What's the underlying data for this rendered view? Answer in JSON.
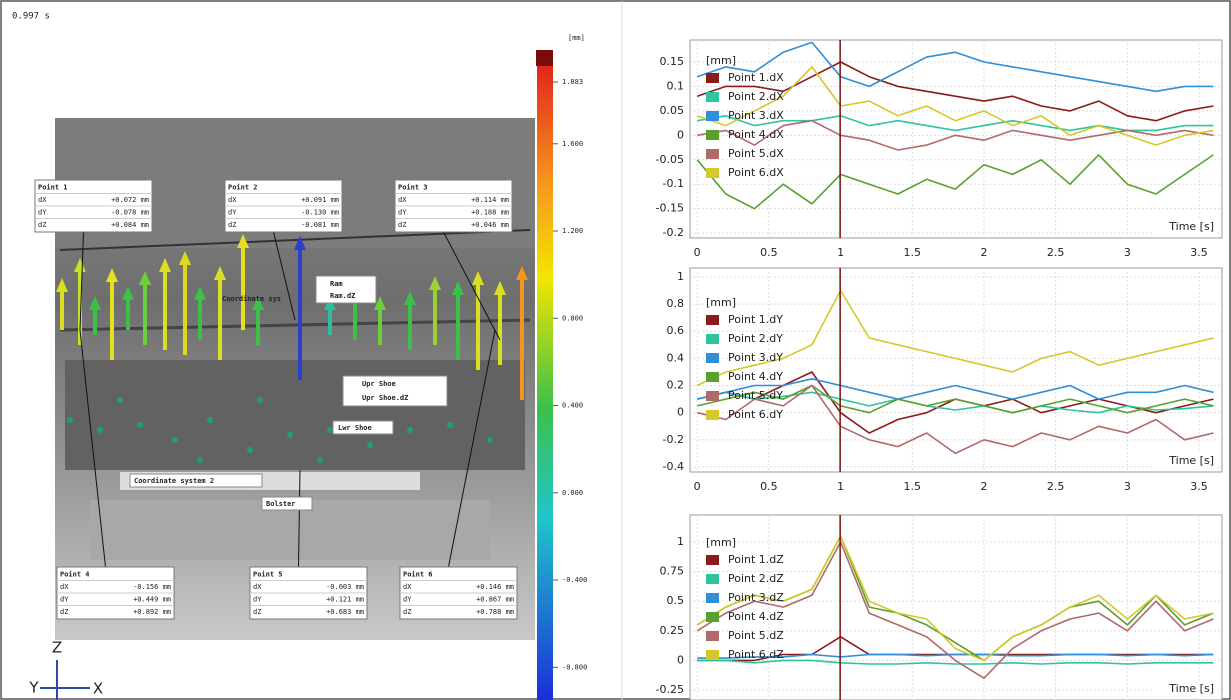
{
  "timestamp": "0.997 s",
  "colorbar": {
    "unit": "[mm]",
    "lim": [
      -0.95,
      2.03
    ],
    "ticks": [
      {
        "value": 1.883,
        "label": "1.883"
      },
      {
        "value": 1.6,
        "label": "1.600"
      },
      {
        "value": 1.2,
        "label": "1.200"
      },
      {
        "value": 0.8,
        "label": "0.800"
      },
      {
        "value": 0.4,
        "label": "0.400"
      },
      {
        "value": 0,
        "label": "0.000"
      },
      {
        "value": -0.4,
        "label": "-0.400"
      },
      {
        "value": -0.8,
        "label": "-0.800"
      }
    ]
  },
  "point_boxes": [
    {
      "title": "Point 1",
      "rows": [
        [
          "dX",
          "+0.072 mm"
        ],
        [
          "dY",
          "-0.078 mm"
        ],
        [
          "dZ",
          "+0.084 mm"
        ]
      ]
    },
    {
      "title": "Point 2",
      "rows": [
        [
          "dX",
          "+0.091 mm"
        ],
        [
          "dY",
          "-0.130 mm"
        ],
        [
          "dZ",
          "-0.081 mm"
        ]
      ]
    },
    {
      "title": "Point 3",
      "rows": [
        [
          "dX",
          "+0.114 mm"
        ],
        [
          "dY",
          "+0.188 mm"
        ],
        [
          "dZ",
          "+0.046 mm"
        ]
      ]
    },
    {
      "title": "Point 4",
      "rows": [
        [
          "dX",
          "-0.156 mm"
        ],
        [
          "dY",
          "+0.449 mm"
        ],
        [
          "dZ",
          "+0.892 mm"
        ]
      ]
    },
    {
      "title": "Point 5",
      "rows": [
        [
          "dX",
          "-0.003 mm"
        ],
        [
          "dY",
          "+0.121 mm"
        ],
        [
          "dZ",
          "+0.683 mm"
        ]
      ]
    },
    {
      "title": "Point 6",
      "rows": [
        [
          "dX",
          "+0.146 mm"
        ],
        [
          "dY",
          "+0.867 mm"
        ],
        [
          "dZ",
          "+0.788 mm"
        ]
      ]
    }
  ],
  "labels": [
    "Ram",
    "Ram.dZ",
    "Coordinate sys",
    "Upr Shoe",
    "Upr Shoe.dZ",
    "Lwr Shoe",
    "Coordinate system 2",
    "Bolster"
  ],
  "triad": {
    "z": "Z",
    "y": "Y",
    "x": "X"
  },
  "chart_data": [
    {
      "type": "line",
      "legend_title": "[mm]",
      "xlabel": "Time [s]",
      "legend": "upper left",
      "grid": true,
      "cursor": 0.997,
      "x": [
        0,
        0.2,
        0.4,
        0.6,
        0.8,
        1,
        1.2,
        1.4,
        1.6,
        1.8,
        2,
        2.2,
        2.4,
        2.6,
        2.8,
        3,
        3.2,
        3.4,
        3.6
      ],
      "xlim": [
        -0.05,
        3.66
      ],
      "xticks": [
        0,
        0.5,
        1,
        1.5,
        2,
        2.5,
        3,
        3.5
      ],
      "ylim": [
        -0.21,
        0.195
      ],
      "yticks": [
        0.15,
        0.1,
        0.05,
        0,
        -0.05,
        -0.1,
        -0.15,
        -0.2
      ],
      "series": [
        {
          "name": "Point 1.dX",
          "color": "#8b1a1a",
          "values": [
            0.08,
            0.1,
            0.1,
            0.09,
            0.12,
            0.15,
            0.12,
            0.1,
            0.09,
            0.08,
            0.07,
            0.08,
            0.06,
            0.05,
            0.07,
            0.04,
            0.03,
            0.05,
            0.06
          ]
        },
        {
          "name": "Point 2.dX",
          "color": "#2ec4a0",
          "values": [
            0.03,
            0.04,
            0.02,
            0.03,
            0.03,
            0.04,
            0.02,
            0.03,
            0.02,
            0.01,
            0.02,
            0.03,
            0.02,
            0.01,
            0.02,
            0.01,
            0.01,
            0.02,
            0.02
          ]
        },
        {
          "name": "Point 3.dX",
          "color": "#2f8fd8",
          "values": [
            0.12,
            0.14,
            0.13,
            0.17,
            0.19,
            0.12,
            0.1,
            0.13,
            0.16,
            0.17,
            0.15,
            0.14,
            0.13,
            0.12,
            0.11,
            0.1,
            0.09,
            0.1,
            0.1
          ]
        },
        {
          "name": "Point 4.dX",
          "color": "#5aa02c",
          "values": [
            -0.05,
            -0.12,
            -0.15,
            -0.1,
            -0.14,
            -0.08,
            -0.1,
            -0.12,
            -0.09,
            -0.11,
            -0.06,
            -0.08,
            -0.05,
            -0.1,
            -0.04,
            -0.1,
            -0.12,
            -0.08,
            -0.04
          ]
        },
        {
          "name": "Point 5.dX",
          "color": "#b06a6a",
          "values": [
            0,
            0.01,
            -0.02,
            0.02,
            0.03,
            0,
            -0.01,
            -0.03,
            -0.02,
            0,
            -0.01,
            0.01,
            0,
            -0.01,
            0,
            0.01,
            0,
            0.01,
            0
          ]
        },
        {
          "name": "Point 6.dX",
          "color": "#d4c82a",
          "values": [
            0.04,
            0.02,
            0.05,
            0.08,
            0.14,
            0.06,
            0.07,
            0.04,
            0.06,
            0.03,
            0.05,
            0.02,
            0.04,
            0,
            0.02,
            0,
            -0.02,
            0,
            0.01
          ]
        }
      ]
    },
    {
      "type": "line",
      "legend_title": "[mm]",
      "xlabel": "Time [s]",
      "legend": "upper left",
      "grid": true,
      "cursor": 0.997,
      "x": [
        0,
        0.2,
        0.4,
        0.6,
        0.8,
        1,
        1.2,
        1.4,
        1.6,
        1.8,
        2,
        2.2,
        2.4,
        2.6,
        2.8,
        3,
        3.2,
        3.4,
        3.6
      ],
      "xlim": [
        -0.05,
        3.66
      ],
      "xticks": [
        0,
        0.5,
        1,
        1.5,
        2,
        2.5,
        3,
        3.5
      ],
      "ylim": [
        -0.437,
        1.066
      ],
      "yticks": [
        1,
        0.8,
        0.6,
        0.4,
        0.2,
        0,
        -0.2,
        -0.4
      ],
      "series": [
        {
          "name": "Point 1.dY",
          "color": "#8b1a1a",
          "values": [
            0.1,
            0.15,
            0.1,
            0.2,
            0.3,
            0,
            -0.15,
            -0.05,
            0,
            0.1,
            0.05,
            0.1,
            0,
            0.05,
            0.1,
            0.05,
            0,
            0.05,
            0.1
          ]
        },
        {
          "name": "Point 2.dY",
          "color": "#2ec4a0",
          "values": [
            0.1,
            0.15,
            0.1,
            0.12,
            0.15,
            0.1,
            0.05,
            0.1,
            0.05,
            0.02,
            0.05,
            0,
            0.05,
            0.02,
            0,
            0.05,
            0.02,
            0.03,
            0.05
          ]
        },
        {
          "name": "Point 3.dY",
          "color": "#2f8fd8",
          "values": [
            0.1,
            0.15,
            0.2,
            0.2,
            0.25,
            0.2,
            0.15,
            0.1,
            0.15,
            0.2,
            0.15,
            0.1,
            0.15,
            0.2,
            0.1,
            0.15,
            0.15,
            0.2,
            0.15
          ]
        },
        {
          "name": "Point 4.dY",
          "color": "#5aa02c",
          "values": [
            0.05,
            0.1,
            0.15,
            0.1,
            0.2,
            0.05,
            0,
            0.1,
            0.05,
            0.1,
            0.05,
            0,
            0.05,
            0.1,
            0.05,
            0,
            0.05,
            0.1,
            0.05
          ]
        },
        {
          "name": "Point 5.dY",
          "color": "#b06a6a",
          "values": [
            0,
            -0.05,
            0.1,
            0.05,
            0.2,
            -0.1,
            -0.2,
            -0.25,
            -0.15,
            -0.3,
            -0.2,
            -0.25,
            -0.15,
            -0.2,
            -0.1,
            -0.15,
            -0.05,
            -0.2,
            -0.15
          ]
        },
        {
          "name": "Point 6.dY",
          "color": "#d4c82a",
          "values": [
            0.2,
            0.3,
            0.35,
            0.4,
            0.5,
            0.9,
            0.55,
            0.5,
            0.45,
            0.4,
            0.35,
            0.3,
            0.4,
            0.45,
            0.35,
            0.4,
            0.45,
            0.5,
            0.55
          ]
        }
      ]
    },
    {
      "type": "line",
      "legend_title": "[mm]",
      "xlabel": "Time [s]",
      "legend": "upper left",
      "grid": true,
      "cursor": 0.997,
      "x": [
        0,
        0.2,
        0.4,
        0.6,
        0.8,
        1,
        1.2,
        1.4,
        1.6,
        1.8,
        2,
        2.2,
        2.4,
        2.6,
        2.8,
        3,
        3.2,
        3.4,
        3.6
      ],
      "xlim": [
        -0.05,
        3.66
      ],
      "xticks": [
        0,
        0.5,
        1,
        1.5,
        2,
        2.5,
        3,
        3.5
      ],
      "ylim": [
        -0.334,
        1.228
      ],
      "yticks": [
        1,
        0.75,
        0.5,
        0.25,
        0,
        -0.25
      ],
      "series": [
        {
          "name": "Point 1.dZ",
          "color": "#8b1a1a",
          "values": [
            0,
            0,
            0,
            0.05,
            0.05,
            0.2,
            0.05,
            0.05,
            0.05,
            0.05,
            0.05,
            0.05,
            0.05,
            0.05,
            0.05,
            0.05,
            0.05,
            0.05,
            0.05
          ]
        },
        {
          "name": "Point 2.dZ",
          "color": "#2ec4a0",
          "values": [
            0,
            0,
            -0.02,
            0,
            0,
            -0.02,
            -0.03,
            -0.03,
            -0.02,
            -0.03,
            -0.03,
            -0.02,
            -0.03,
            -0.02,
            -0.02,
            -0.03,
            -0.02,
            -0.02,
            -0.02
          ]
        },
        {
          "name": "Point 3.dZ",
          "color": "#2f8fd8",
          "values": [
            0.02,
            0.02,
            0.03,
            0.03,
            0.05,
            0.03,
            0.05,
            0.05,
            0.04,
            0.05,
            0.05,
            0.04,
            0.04,
            0.05,
            0.05,
            0.04,
            0.05,
            0.04,
            0.05
          ]
        },
        {
          "name": "Point 4.dZ",
          "color": "#5aa02c",
          "values": [
            0.3,
            0.45,
            0.55,
            0.5,
            0.6,
            1.05,
            0.45,
            0.4,
            0.3,
            0.15,
            0,
            0.2,
            0.3,
            0.45,
            0.5,
            0.3,
            0.55,
            0.3,
            0.4
          ]
        },
        {
          "name": "Point 5.dZ",
          "color": "#b06a6a",
          "values": [
            0.25,
            0.4,
            0.5,
            0.45,
            0.55,
            1.0,
            0.4,
            0.3,
            0.2,
            0,
            -0.15,
            0.1,
            0.25,
            0.35,
            0.4,
            0.25,
            0.5,
            0.25,
            0.35
          ]
        },
        {
          "name": "Point 6.dZ",
          "color": "#d4c82a",
          "values": [
            0.3,
            0.45,
            0.55,
            0.5,
            0.6,
            1.05,
            0.5,
            0.4,
            0.35,
            0.1,
            0,
            0.2,
            0.3,
            0.45,
            0.55,
            0.35,
            0.55,
            0.35,
            0.4
          ]
        }
      ]
    }
  ]
}
